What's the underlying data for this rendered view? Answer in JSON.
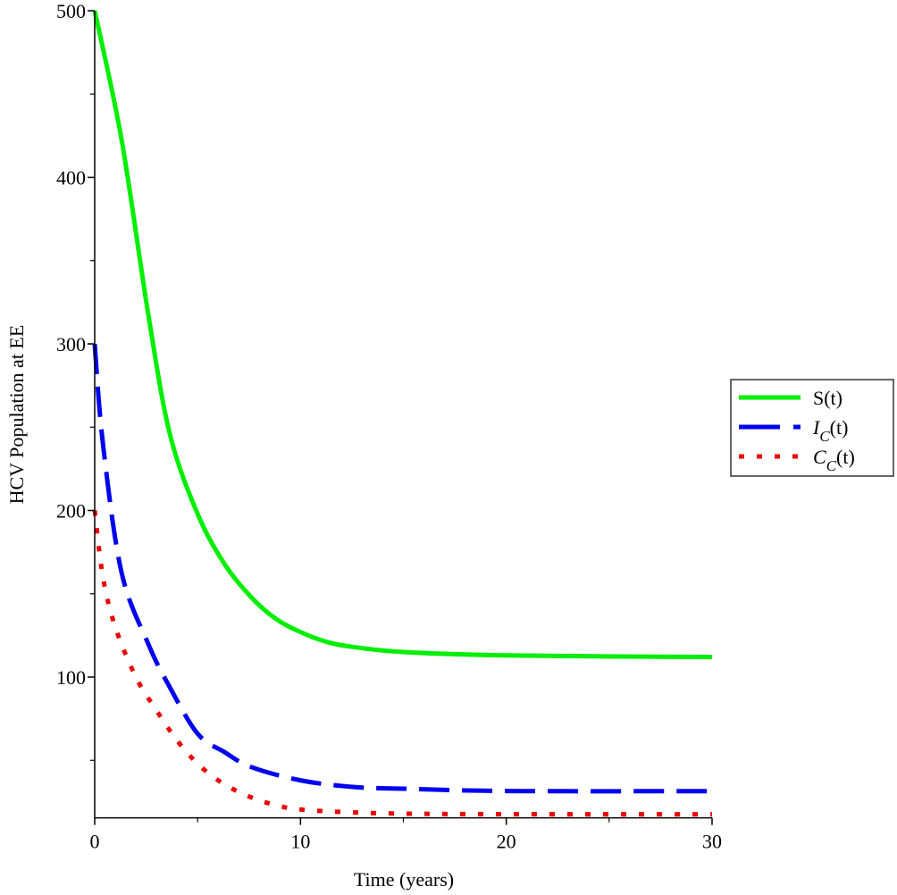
{
  "chart_data": {
    "type": "line",
    "title": "",
    "xlabel": "Time (years)",
    "ylabel": "HCV Population at EE",
    "xlim": [
      0,
      30
    ],
    "ylim": [
      15.5,
      500
    ],
    "xticks": [
      0,
      10,
      20,
      30
    ],
    "xtick_labels": [
      "0",
      "10",
      "20",
      "30"
    ],
    "yticks": [
      100,
      200,
      300,
      400,
      500
    ],
    "ytick_labels": [
      "100",
      "200",
      "300",
      "400",
      "500"
    ],
    "grid": false,
    "legend_position": "right",
    "series": [
      {
        "name": "S(t)",
        "legend_main": "S(t)",
        "legend_sub": "",
        "color": "#00ee00",
        "style": "solid",
        "x": [
          0,
          1.3,
          2.6,
          3.65,
          5,
          6.3,
          7.6,
          8.8,
          10,
          11.3,
          12.6,
          15,
          20,
          30
        ],
        "y": [
          500,
          423,
          318,
          246,
          198,
          168,
          148,
          135,
          127,
          121,
          118,
          115,
          113,
          112
        ]
      },
      {
        "name": "I_C(t)",
        "legend_main": "I",
        "legend_sub": "C",
        "legend_tail": "(t)",
        "color": "#0000ee",
        "style": "dash",
        "x": [
          0,
          0.4,
          1.3,
          2.6,
          3.6,
          5,
          6.3,
          7.6,
          10,
          12.6,
          15,
          20,
          30
        ],
        "y": [
          300,
          240,
          163,
          120,
          95,
          66,
          55,
          46,
          38,
          34,
          33,
          31.6,
          31.5
        ]
      },
      {
        "name": "C_C(t)",
        "legend_main": "C",
        "legend_sub": "C",
        "legend_tail": "(t)",
        "color": "#ee0000",
        "style": "dot",
        "x": [
          0,
          0.4,
          1,
          2,
          3,
          4,
          5,
          6,
          7,
          8,
          9,
          10,
          12,
          15,
          20,
          30
        ],
        "y": [
          200,
          160,
          130,
          100,
          80,
          62,
          48,
          38,
          31,
          26,
          22.5,
          20.5,
          19,
          18,
          17.7,
          17.6
        ]
      }
    ]
  }
}
